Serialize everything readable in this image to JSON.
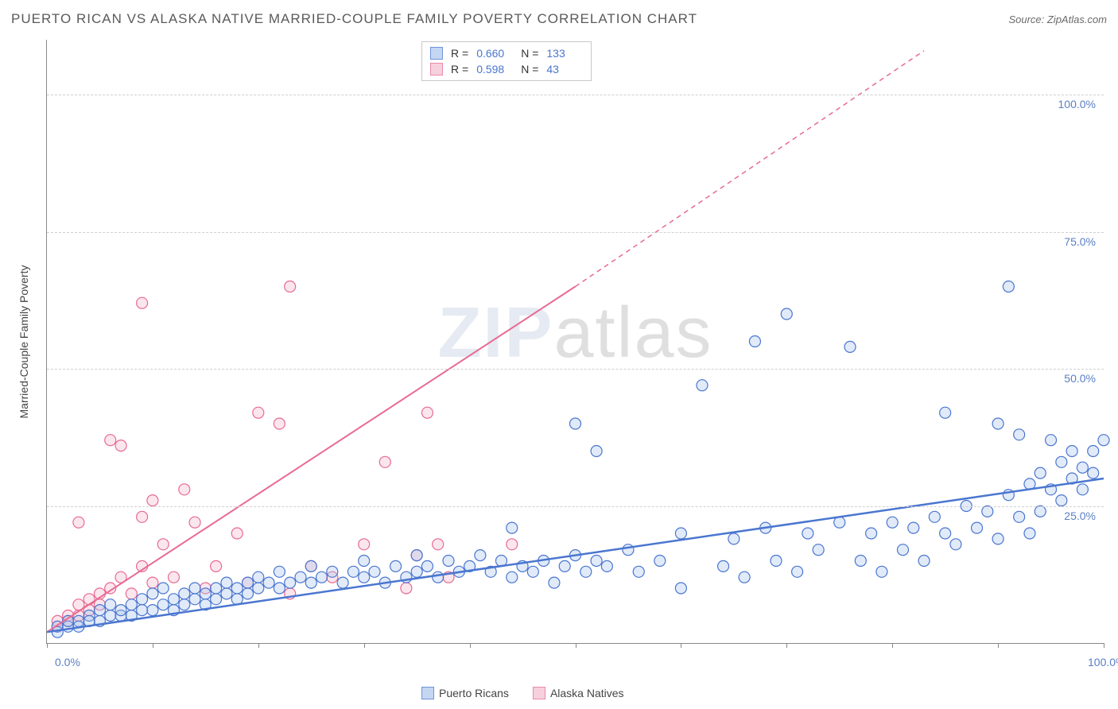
{
  "title": "PUERTO RICAN VS ALASKA NATIVE MARRIED-COUPLE FAMILY POVERTY CORRELATION CHART",
  "source": "Source: ZipAtlas.com",
  "y_axis_label": "Married-Couple Family Poverty",
  "watermark_a": "ZIP",
  "watermark_b": "atlas",
  "chart": {
    "type": "scatter",
    "xlim": [
      0,
      100
    ],
    "ylim": [
      0,
      110
    ],
    "x_ticks": [
      0,
      10,
      20,
      30,
      40,
      50,
      60,
      70,
      80,
      90,
      100
    ],
    "x_tick_labels": {
      "0": "0.0%",
      "100": "100.0%"
    },
    "y_ticks": [
      25,
      50,
      75,
      100
    ],
    "y_tick_labels": [
      "25.0%",
      "50.0%",
      "75.0%",
      "100.0%"
    ],
    "grid_color": "#d0d0d0",
    "background_color": "#ffffff",
    "axis_color": "#888888",
    "marker_radius": 7,
    "marker_stroke_width": 1.2,
    "marker_fill_opacity": 0.35,
    "series": [
      {
        "name": "Puerto Ricans",
        "legend_label": "Puerto Ricans",
        "color_stroke": "#4a76d0",
        "color_fill": "#a8c3ec",
        "R": "0.660",
        "N": "133",
        "trend": {
          "x1": 0,
          "y1": 2,
          "x2": 100,
          "y2": 30,
          "width": 2.5,
          "dash": "none"
        },
        "points": [
          [
            1,
            3
          ],
          [
            1,
            2
          ],
          [
            2,
            3
          ],
          [
            2,
            4
          ],
          [
            3,
            4
          ],
          [
            3,
            3
          ],
          [
            4,
            5
          ],
          [
            4,
            4
          ],
          [
            5,
            4
          ],
          [
            5,
            6
          ],
          [
            6,
            5
          ],
          [
            6,
            7
          ],
          [
            7,
            5
          ],
          [
            7,
            6
          ],
          [
            8,
            7
          ],
          [
            8,
            5
          ],
          [
            9,
            6
          ],
          [
            9,
            8
          ],
          [
            10,
            6
          ],
          [
            10,
            9
          ],
          [
            11,
            7
          ],
          [
            11,
            10
          ],
          [
            12,
            8
          ],
          [
            12,
            6
          ],
          [
            13,
            9
          ],
          [
            13,
            7
          ],
          [
            14,
            8
          ],
          [
            14,
            10
          ],
          [
            15,
            9
          ],
          [
            15,
            7
          ],
          [
            16,
            10
          ],
          [
            16,
            8
          ],
          [
            17,
            9
          ],
          [
            17,
            11
          ],
          [
            18,
            10
          ],
          [
            18,
            8
          ],
          [
            19,
            11
          ],
          [
            19,
            9
          ],
          [
            20,
            10
          ],
          [
            20,
            12
          ],
          [
            21,
            11
          ],
          [
            22,
            10
          ],
          [
            22,
            13
          ],
          [
            23,
            11
          ],
          [
            24,
            12
          ],
          [
            25,
            11
          ],
          [
            25,
            14
          ],
          [
            26,
            12
          ],
          [
            27,
            13
          ],
          [
            28,
            11
          ],
          [
            29,
            13
          ],
          [
            30,
            12
          ],
          [
            30,
            15
          ],
          [
            31,
            13
          ],
          [
            32,
            11
          ],
          [
            33,
            14
          ],
          [
            34,
            12
          ],
          [
            35,
            13
          ],
          [
            35,
            16
          ],
          [
            36,
            14
          ],
          [
            37,
            12
          ],
          [
            38,
            15
          ],
          [
            39,
            13
          ],
          [
            40,
            14
          ],
          [
            41,
            16
          ],
          [
            42,
            13
          ],
          [
            43,
            15
          ],
          [
            44,
            12
          ],
          [
            45,
            14
          ],
          [
            46,
            13
          ],
          [
            47,
            15
          ],
          [
            48,
            11
          ],
          [
            49,
            14
          ],
          [
            50,
            16
          ],
          [
            51,
            13
          ],
          [
            52,
            15
          ],
          [
            53,
            14
          ],
          [
            55,
            17
          ],
          [
            56,
            13
          ],
          [
            58,
            15
          ],
          [
            44,
            21
          ],
          [
            50,
            40
          ],
          [
            52,
            35
          ],
          [
            60,
            10
          ],
          [
            60,
            20
          ],
          [
            62,
            47
          ],
          [
            64,
            14
          ],
          [
            65,
            19
          ],
          [
            66,
            12
          ],
          [
            67,
            55
          ],
          [
            68,
            21
          ],
          [
            69,
            15
          ],
          [
            70,
            60
          ],
          [
            71,
            13
          ],
          [
            72,
            20
          ],
          [
            73,
            17
          ],
          [
            75,
            22
          ],
          [
            76,
            54
          ],
          [
            77,
            15
          ],
          [
            78,
            20
          ],
          [
            79,
            13
          ],
          [
            80,
            22
          ],
          [
            81,
            17
          ],
          [
            82,
            21
          ],
          [
            83,
            15
          ],
          [
            84,
            23
          ],
          [
            85,
            20
          ],
          [
            85,
            42
          ],
          [
            86,
            18
          ],
          [
            87,
            25
          ],
          [
            88,
            21
          ],
          [
            89,
            24
          ],
          [
            90,
            19
          ],
          [
            90,
            40
          ],
          [
            91,
            27
          ],
          [
            91,
            65
          ],
          [
            92,
            23
          ],
          [
            92,
            38
          ],
          [
            93,
            29
          ],
          [
            93,
            20
          ],
          [
            94,
            31
          ],
          [
            94,
            24
          ],
          [
            95,
            28
          ],
          [
            95,
            37
          ],
          [
            96,
            33
          ],
          [
            96,
            26
          ],
          [
            97,
            35
          ],
          [
            97,
            30
          ],
          [
            98,
            32
          ],
          [
            98,
            28
          ],
          [
            99,
            35
          ],
          [
            99,
            31
          ],
          [
            100,
            37
          ]
        ]
      },
      {
        "name": "Alaska Natives",
        "legend_label": "Alaska Natives",
        "color_stroke": "#e86a92",
        "color_fill": "#f4b8cb",
        "R": "0.598",
        "N": "43",
        "trend_solid": {
          "x1": 0,
          "y1": 2,
          "x2": 50,
          "y2": 65,
          "width": 2,
          "dash": "none"
        },
        "trend_dash": {
          "x1": 50,
          "y1": 65,
          "x2": 83,
          "y2": 108,
          "width": 1.5,
          "dash": "6,5"
        },
        "points": [
          [
            1,
            4
          ],
          [
            1,
            3
          ],
          [
            2,
            5
          ],
          [
            2,
            4
          ],
          [
            3,
            5
          ],
          [
            3,
            7
          ],
          [
            4,
            6
          ],
          [
            4,
            8
          ],
          [
            5,
            7
          ],
          [
            5,
            9
          ],
          [
            3,
            22
          ],
          [
            6,
            10
          ],
          [
            6,
            37
          ],
          [
            7,
            12
          ],
          [
            7,
            36
          ],
          [
            8,
            9
          ],
          [
            9,
            14
          ],
          [
            9,
            23
          ],
          [
            10,
            11
          ],
          [
            10,
            26
          ],
          [
            9,
            62
          ],
          [
            11,
            18
          ],
          [
            12,
            12
          ],
          [
            13,
            28
          ],
          [
            14,
            22
          ],
          [
            15,
            10
          ],
          [
            16,
            14
          ],
          [
            18,
            20
          ],
          [
            19,
            11
          ],
          [
            20,
            42
          ],
          [
            22,
            40
          ],
          [
            23,
            9
          ],
          [
            23,
            65
          ],
          [
            25,
            14
          ],
          [
            27,
            12
          ],
          [
            30,
            18
          ],
          [
            32,
            33
          ],
          [
            34,
            10
          ],
          [
            35,
            16
          ],
          [
            36,
            42
          ],
          [
            37,
            18
          ],
          [
            38,
            12
          ],
          [
            44,
            18
          ]
        ]
      }
    ]
  },
  "legend": {
    "swatch_border_blue": "#6f93d8",
    "swatch_fill_blue": "#c4d6f2",
    "swatch_border_pink": "#e88aab",
    "swatch_fill_pink": "#f6d0dd",
    "text_color": "#444444",
    "value_color": "#4a76d0"
  }
}
